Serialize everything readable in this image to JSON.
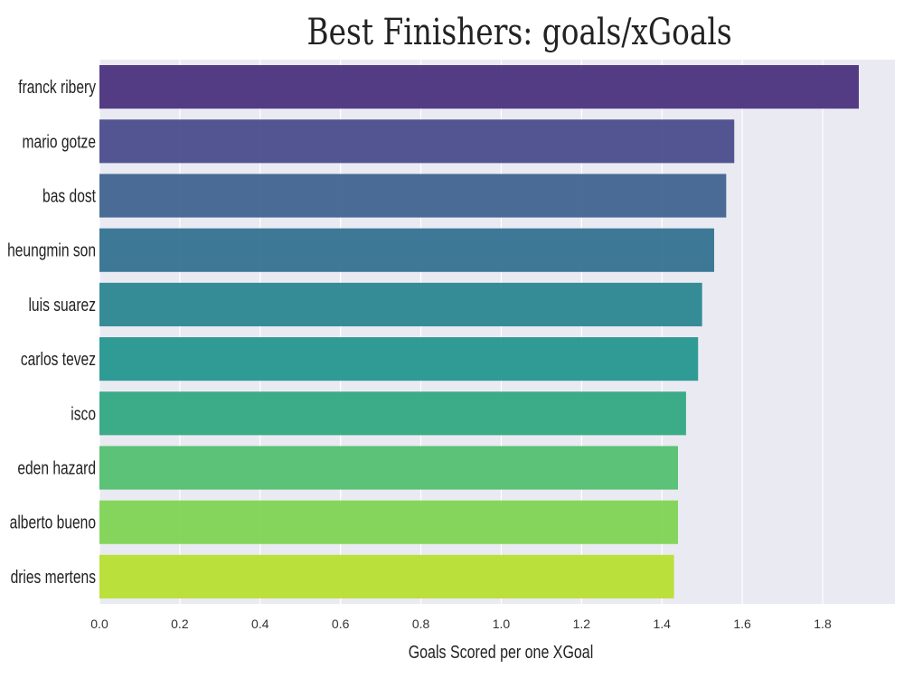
{
  "chart_data": {
    "type": "bar",
    "orientation": "horizontal",
    "title": "Best Finishers: goals/xGoals",
    "xlabel": "Goals Scored per one XGoal",
    "ylabel": "",
    "categories": [
      "franck ribery",
      "mario gotze",
      "bas dost",
      "heungmin son",
      "luis suarez",
      "carlos tevez",
      "isco",
      "eden hazard",
      "alberto bueno",
      "dries mertens"
    ],
    "values": [
      1.89,
      1.58,
      1.56,
      1.53,
      1.5,
      1.49,
      1.46,
      1.44,
      1.44,
      1.43
    ],
    "colors": [
      "#472d7b",
      "#45488a",
      "#3b5f8d",
      "#2e6f8e",
      "#25838e",
      "#20938c",
      "#2ba57f",
      "#4ebe6c",
      "#7cd250",
      "#b5de2b"
    ],
    "xlim": [
      0,
      1.98
    ],
    "xticks": [
      "0.0",
      "0.2",
      "0.4",
      "0.6",
      "0.8",
      "1.0",
      "1.2",
      "1.4",
      "1.6",
      "1.8"
    ],
    "grid": true,
    "background": "#eaeaf2"
  }
}
